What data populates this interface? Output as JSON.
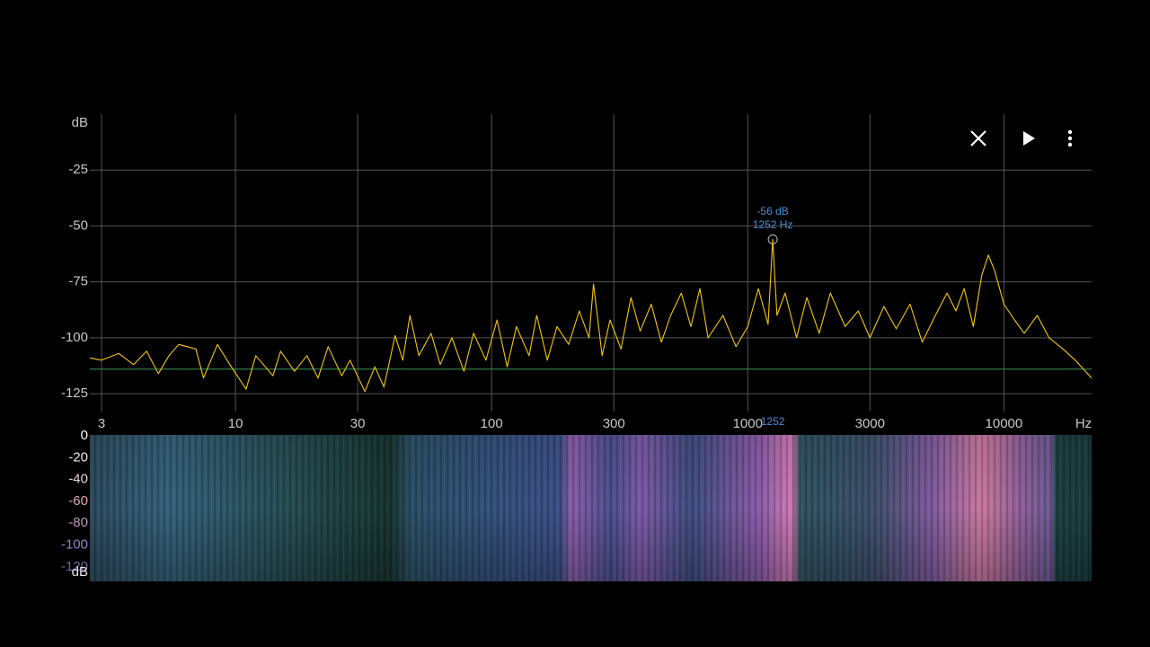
{
  "spectrum": {
    "type": "line",
    "x_unit": "Hz",
    "y_unit": "dB",
    "xscale": "log",
    "xlim": [
      2.7,
      22000
    ],
    "ylim": [
      -133,
      0
    ],
    "xticks": [
      3,
      10,
      30,
      100,
      300,
      1000,
      3000,
      10000
    ],
    "yticks": [
      -25,
      -50,
      -75,
      -100,
      -125
    ],
    "grid": true,
    "series": [
      {
        "color": "#f5c518",
        "x": [
          2.7,
          3,
          3.5,
          4,
          4.5,
          5,
          5.5,
          6,
          7,
          7.5,
          8.5,
          9.5,
          11,
          12,
          14,
          15,
          17,
          19,
          21,
          23,
          26,
          28,
          32,
          35,
          38,
          42,
          45,
          48,
          52,
          58,
          63,
          70,
          78,
          85,
          95,
          105,
          115,
          125,
          140,
          150,
          165,
          180,
          200,
          220,
          240,
          250,
          270,
          290,
          320,
          350,
          380,
          420,
          460,
          500,
          550,
          600,
          650,
          700,
          800,
          900,
          1000,
          1100,
          1200,
          1252,
          1300,
          1400,
          1550,
          1700,
          1900,
          2100,
          2400,
          2700,
          3000,
          3400,
          3800,
          4300,
          4800,
          5400,
          6000,
          6500,
          7000,
          7600,
          8200,
          8700,
          9200,
          10000,
          11000,
          12000,
          13500,
          15000,
          17000,
          19000,
          22000
        ],
        "values": [
          -109,
          -110,
          -107,
          -112,
          -106,
          -116,
          -108,
          -103,
          -105,
          -118,
          -103,
          -112,
          -123,
          -108,
          -117,
          -106,
          -115,
          -108,
          -118,
          -104,
          -117,
          -110,
          -124,
          -113,
          -122,
          -99,
          -110,
          -90,
          -108,
          -98,
          -112,
          -100,
          -115,
          -98,
          -110,
          -92,
          -113,
          -95,
          -108,
          -90,
          -110,
          -95,
          -103,
          -88,
          -100,
          -76,
          -108,
          -92,
          -105,
          -82,
          -97,
          -85,
          -102,
          -90,
          -80,
          -95,
          -78,
          -100,
          -90,
          -104,
          -95,
          -78,
          -94,
          -56,
          -90,
          -80,
          -100,
          -82,
          -98,
          -80,
          -95,
          -88,
          -100,
          -86,
          -96,
          -85,
          -102,
          -90,
          -80,
          -88,
          -78,
          -95,
          -72,
          -63,
          -70,
          -85,
          -92,
          -98,
          -90,
          -100,
          -105,
          -110,
          -118
        ]
      }
    ],
    "baseline": {
      "value": -114,
      "color": "#2f7a4a"
    },
    "peak": {
      "x": 1252,
      "value": -56,
      "value_label": "-56 dB",
      "x_label": "1252 Hz",
      "axis_label": "1252",
      "color": "#4a8fd8"
    }
  },
  "spectrogram": {
    "unit": "dB",
    "scale_ticks": [
      0,
      -20,
      -40,
      -60,
      -80,
      -100,
      -120
    ],
    "tick_colors": [
      "#ffffff",
      "#f2e6ea",
      "#ecccd6",
      "#e4a6bb",
      "#c092c4",
      "#8e86c8",
      "#6c68a8"
    ]
  }
}
